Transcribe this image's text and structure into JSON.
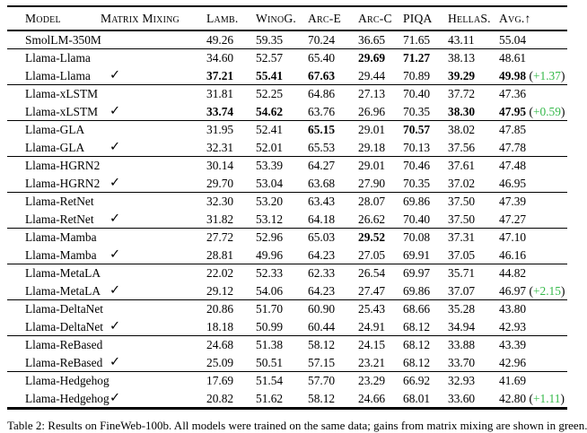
{
  "table": {
    "columns": [
      {
        "key": "model",
        "label": "Model"
      },
      {
        "key": "matrix",
        "label": "Matrix Mixing"
      },
      {
        "key": "lamb",
        "label": "Lamb."
      },
      {
        "key": "winog",
        "label": "WinoG."
      },
      {
        "key": "arce",
        "label": "Arc-E"
      },
      {
        "key": "arcc",
        "label": "Arc-C"
      },
      {
        "key": "piqa",
        "label": "PIQA"
      },
      {
        "key": "hellas",
        "label": "HellaS."
      },
      {
        "key": "avg",
        "label": "Avg.↑"
      }
    ],
    "check_glyph": "✓",
    "rows": [
      {
        "model": "SmolLM-350M",
        "check": false,
        "group_start": false,
        "values": [
          "49.26",
          "59.35",
          "70.24",
          "36.65",
          "71.65",
          "43.11",
          "55.04"
        ],
        "bold": [
          false,
          false,
          false,
          false,
          false,
          false,
          false
        ],
        "delta": null
      },
      {
        "model": "Llama-Llama",
        "check": false,
        "group_start": true,
        "values": [
          "34.60",
          "52.57",
          "65.40",
          "29.69",
          "71.27",
          "38.13",
          "48.61"
        ],
        "bold": [
          false,
          false,
          false,
          true,
          true,
          false,
          false
        ],
        "delta": null
      },
      {
        "model": "Llama-Llama",
        "check": true,
        "group_start": false,
        "values": [
          "37.21",
          "55.41",
          "67.63",
          "29.44",
          "70.89",
          "39.29",
          "49.98"
        ],
        "bold": [
          true,
          true,
          true,
          false,
          false,
          true,
          true
        ],
        "delta": "+1.37"
      },
      {
        "model": "Llama-xLSTM",
        "check": false,
        "group_start": true,
        "values": [
          "31.81",
          "52.25",
          "64.86",
          "27.13",
          "70.40",
          "37.72",
          "47.36"
        ],
        "bold": [
          false,
          false,
          false,
          false,
          false,
          false,
          false
        ],
        "delta": null
      },
      {
        "model": "Llama-xLSTM",
        "check": true,
        "group_start": false,
        "values": [
          "33.74",
          "54.62",
          "63.76",
          "26.96",
          "70.35",
          "38.30",
          "47.95"
        ],
        "bold": [
          true,
          true,
          false,
          false,
          false,
          true,
          true
        ],
        "delta": "+0.59"
      },
      {
        "model": "Llama-GLA",
        "check": false,
        "group_start": true,
        "values": [
          "31.95",
          "52.41",
          "65.15",
          "29.01",
          "70.57",
          "38.02",
          "47.85"
        ],
        "bold": [
          false,
          false,
          true,
          false,
          true,
          false,
          false
        ],
        "delta": null
      },
      {
        "model": "Llama-GLA",
        "check": true,
        "group_start": false,
        "values": [
          "32.31",
          "52.01",
          "65.53",
          "29.18",
          "70.13",
          "37.56",
          "47.78"
        ],
        "bold": [
          false,
          false,
          false,
          false,
          false,
          false,
          false
        ],
        "delta": null
      },
      {
        "model": "Llama-HGRN2",
        "check": false,
        "group_start": true,
        "values": [
          "30.14",
          "53.39",
          "64.27",
          "29.01",
          "70.46",
          "37.61",
          "47.48"
        ],
        "bold": [
          false,
          false,
          false,
          false,
          false,
          false,
          false
        ],
        "delta": null
      },
      {
        "model": "Llama-HGRN2",
        "check": true,
        "group_start": false,
        "values": [
          "29.70",
          "53.04",
          "63.68",
          "27.90",
          "70.35",
          "37.02",
          "46.95"
        ],
        "bold": [
          false,
          false,
          false,
          false,
          false,
          false,
          false
        ],
        "delta": null
      },
      {
        "model": "Llama-RetNet",
        "check": false,
        "group_start": true,
        "values": [
          "32.30",
          "53.20",
          "63.43",
          "28.07",
          "69.86",
          "37.50",
          "47.39"
        ],
        "bold": [
          false,
          false,
          false,
          false,
          false,
          false,
          false
        ],
        "delta": null
      },
      {
        "model": "Llama-RetNet",
        "check": true,
        "group_start": false,
        "values": [
          "31.82",
          "53.12",
          "64.18",
          "26.62",
          "70.40",
          "37.50",
          "47.27"
        ],
        "bold": [
          false,
          false,
          false,
          false,
          false,
          false,
          false
        ],
        "delta": null
      },
      {
        "model": "Llama-Mamba",
        "check": false,
        "group_start": true,
        "values": [
          "27.72",
          "52.96",
          "65.03",
          "29.52",
          "70.08",
          "37.31",
          "47.10"
        ],
        "bold": [
          false,
          false,
          false,
          true,
          false,
          false,
          false
        ],
        "delta": null
      },
      {
        "model": "Llama-Mamba",
        "check": true,
        "group_start": false,
        "values": [
          "28.81",
          "49.96",
          "64.23",
          "27.05",
          "69.91",
          "37.05",
          "46.16"
        ],
        "bold": [
          false,
          false,
          false,
          false,
          false,
          false,
          false
        ],
        "delta": null
      },
      {
        "model": "Llama-MetaLA",
        "check": false,
        "group_start": true,
        "values": [
          "22.02",
          "52.33",
          "62.33",
          "26.54",
          "69.97",
          "35.71",
          "44.82"
        ],
        "bold": [
          false,
          false,
          false,
          false,
          false,
          false,
          false
        ],
        "delta": null
      },
      {
        "model": "Llama-MetaLA",
        "check": true,
        "group_start": false,
        "values": [
          "29.12",
          "54.06",
          "64.23",
          "27.47",
          "69.86",
          "37.07",
          "46.97"
        ],
        "bold": [
          false,
          false,
          false,
          false,
          false,
          false,
          false
        ],
        "delta": "+2.15"
      },
      {
        "model": "Llama-DeltaNet",
        "check": false,
        "group_start": true,
        "values": [
          "20.86",
          "51.70",
          "60.90",
          "25.43",
          "68.66",
          "35.28",
          "43.80"
        ],
        "bold": [
          false,
          false,
          false,
          false,
          false,
          false,
          false
        ],
        "delta": null
      },
      {
        "model": "Llama-DeltaNet",
        "check": true,
        "group_start": false,
        "values": [
          "18.18",
          "50.99",
          "60.44",
          "24.91",
          "68.12",
          "34.94",
          "42.93"
        ],
        "bold": [
          false,
          false,
          false,
          false,
          false,
          false,
          false
        ],
        "delta": null
      },
      {
        "model": "Llama-ReBased",
        "check": false,
        "group_start": true,
        "values": [
          "24.68",
          "51.38",
          "58.12",
          "24.15",
          "68.12",
          "33.88",
          "43.39"
        ],
        "bold": [
          false,
          false,
          false,
          false,
          false,
          false,
          false
        ],
        "delta": null
      },
      {
        "model": "Llama-ReBased",
        "check": true,
        "group_start": false,
        "values": [
          "25.09",
          "50.51",
          "57.15",
          "23.21",
          "68.12",
          "33.70",
          "42.96"
        ],
        "bold": [
          false,
          false,
          false,
          false,
          false,
          false,
          false
        ],
        "delta": null
      },
      {
        "model": "Llama-Hedgehog",
        "check": false,
        "group_start": true,
        "values": [
          "17.69",
          "51.54",
          "57.70",
          "23.29",
          "66.92",
          "32.93",
          "41.69"
        ],
        "bold": [
          false,
          false,
          false,
          false,
          false,
          false,
          false
        ],
        "delta": null
      },
      {
        "model": "Llama-Hedgehog",
        "check": true,
        "group_start": false,
        "values": [
          "20.82",
          "51.62",
          "58.12",
          "24.66",
          "68.01",
          "33.60",
          "42.80"
        ],
        "bold": [
          false,
          false,
          false,
          false,
          false,
          false,
          false
        ],
        "delta": "+1.11"
      }
    ],
    "caption": "Table 2: Results on FineWeb-100b. All models were trained on the same data; gains from matrix mixing are shown in green."
  },
  "colors": {
    "delta_green": "#35b94a",
    "text": "#000000",
    "rule": "#000000"
  }
}
